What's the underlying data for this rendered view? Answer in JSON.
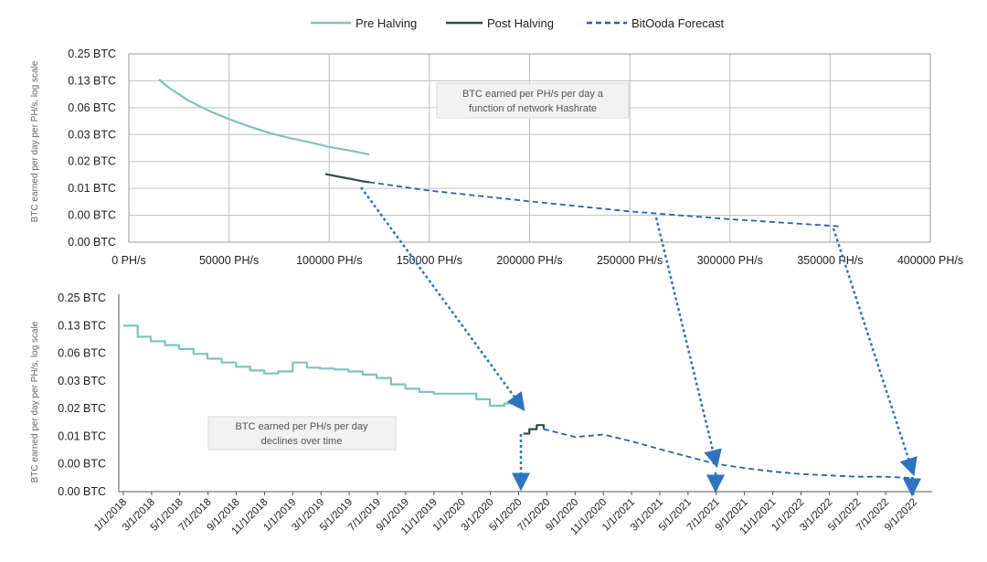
{
  "legend": [
    {
      "name": "Pre Halving",
      "color": "#7ec3bd",
      "style": "solid"
    },
    {
      "name": "Post Halving",
      "color": "#2f4f4b",
      "style": "solid"
    },
    {
      "name": "BitOoda Forecast",
      "color": "#2e5fa8",
      "style": "dashed"
    }
  ],
  "colors": {
    "pre": "#7ec3bd",
    "post": "#2f4f4b",
    "forecast": "#2e5fa8",
    "arrow": "#2f74c0",
    "grid": "#bfbfbf"
  },
  "chart_data": [
    {
      "type": "line",
      "xlabel": "",
      "ylabel": "BTC earned per day per PH/s, log scale",
      "x_unit_suffix": " PH/s",
      "xlim": [
        0,
        400000
      ],
      "x_ticks": [
        "0 PH/s",
        "50000 PH/s",
        "100000 PH/s",
        "150000 PH/s",
        "200000 PH/s",
        "250000 PH/s",
        "300000 PH/s",
        "350000 PH/s",
        "400000 PH/s"
      ],
      "y_tick_labels": [
        "0.00 BTC",
        "0.00 BTC",
        "0.01 BTC",
        "0.02 BTC",
        "0.03 BTC",
        "0.06 BTC",
        "0.13 BTC",
        "0.25 BTC"
      ],
      "y_log_values": [
        0.002,
        0.004,
        0.008,
        0.016,
        0.03,
        0.06,
        0.125,
        0.25
      ],
      "grid": true,
      "annotation": "BTC earned per PH/s per day a function of network Hashrate",
      "series": [
        {
          "name": "Pre Halving",
          "x": [
            15000,
            20000,
            30000,
            40000,
            50000,
            60000,
            70000,
            80000,
            90000,
            100000,
            110000,
            120000
          ],
          "values": [
            0.13,
            0.105,
            0.075,
            0.058,
            0.047,
            0.039,
            0.033,
            0.029,
            0.026,
            0.023,
            0.021,
            0.019
          ]
        },
        {
          "name": "Post Halving",
          "x": [
            98000,
            104000,
            110000,
            116000,
            120000
          ],
          "values": [
            0.0115,
            0.0108,
            0.0102,
            0.0096,
            0.0093
          ]
        },
        {
          "name": "BitOoda Forecast",
          "x": [
            120000,
            150000,
            200000,
            250000,
            300000,
            355000
          ],
          "values": [
            0.0093,
            0.0075,
            0.0057,
            0.0044,
            0.0036,
            0.003
          ]
        }
      ]
    },
    {
      "type": "line",
      "xlabel": "",
      "ylabel": "BTC earned per day per PH/s, log scale",
      "x_ticks": [
        "1/1/2018",
        "3/1/2018",
        "5/1/2018",
        "7/1/2018",
        "9/1/2018",
        "11/1/2018",
        "1/1/2019",
        "3/1/2019",
        "5/1/2019",
        "7/1/2019",
        "9/1/2019",
        "11/1/2019",
        "1/1/2020",
        "3/1/2020",
        "5/1/2020",
        "7/1/2020",
        "9/1/2020",
        "11/1/2020",
        "1/1/2021",
        "3/1/2021",
        "5/1/2021",
        "7/1/2021",
        "9/1/2021",
        "11/1/2021",
        "1/1/2022",
        "3/1/2022",
        "5/1/2022",
        "7/1/2022",
        "9/1/2022"
      ],
      "y_tick_labels": [
        "0.00 BTC",
        "0.00 BTC",
        "0.01 BTC",
        "0.02 BTC",
        "0.03 BTC",
        "0.06 BTC",
        "0.13 BTC",
        "0.25 BTC"
      ],
      "y_log_values": [
        0.002,
        0.004,
        0.008,
        0.016,
        0.03,
        0.06,
        0.125,
        0.25
      ],
      "grid": false,
      "annotation": "BTC earned per PH/s per day declines over time",
      "series": [
        {
          "name": "Pre Halving",
          "x": [
            "2018-01-01",
            "2018-02-01",
            "2018-03-01",
            "2018-04-01",
            "2018-05-01",
            "2018-06-01",
            "2018-07-01",
            "2018-08-01",
            "2018-09-01",
            "2018-10-01",
            "2018-11-01",
            "2018-12-01",
            "2019-01-01",
            "2019-02-01",
            "2019-03-01",
            "2019-04-01",
            "2019-05-01",
            "2019-06-01",
            "2019-07-01",
            "2019-08-01",
            "2019-09-01",
            "2019-10-01",
            "2019-11-01",
            "2019-12-01",
            "2020-01-01",
            "2020-02-01",
            "2020-03-01",
            "2020-04-01",
            "2020-05-01"
          ],
          "values": [
            0.125,
            0.095,
            0.085,
            0.077,
            0.07,
            0.062,
            0.055,
            0.05,
            0.045,
            0.041,
            0.038,
            0.04,
            0.05,
            0.044,
            0.043,
            0.042,
            0.04,
            0.037,
            0.034,
            0.029,
            0.026,
            0.024,
            0.023,
            0.023,
            0.023,
            0.02,
            0.017,
            0.018,
            0.017
          ]
        },
        {
          "name": "Post Halving",
          "x": [
            "2020-05-12",
            "2020-05-25",
            "2020-06-10",
            "2020-06-25"
          ],
          "values": [
            0.0085,
            0.0095,
            0.0105,
            0.0095
          ]
        },
        {
          "name": "BitOoda Forecast",
          "x": [
            "2020-06-25",
            "2020-09-01",
            "2020-11-01",
            "2021-01-01",
            "2021-03-01",
            "2021-05-01",
            "2021-07-01",
            "2021-09-01",
            "2021-11-01",
            "2022-01-01",
            "2022-03-01",
            "2022-05-01",
            "2022-07-01",
            "2022-09-01"
          ],
          "values": [
            0.0095,
            0.0078,
            0.0083,
            0.007,
            0.0058,
            0.0048,
            0.004,
            0.0036,
            0.0033,
            0.0031,
            0.003,
            0.0029,
            0.0029,
            0.0028
          ]
        }
      ]
    }
  ]
}
